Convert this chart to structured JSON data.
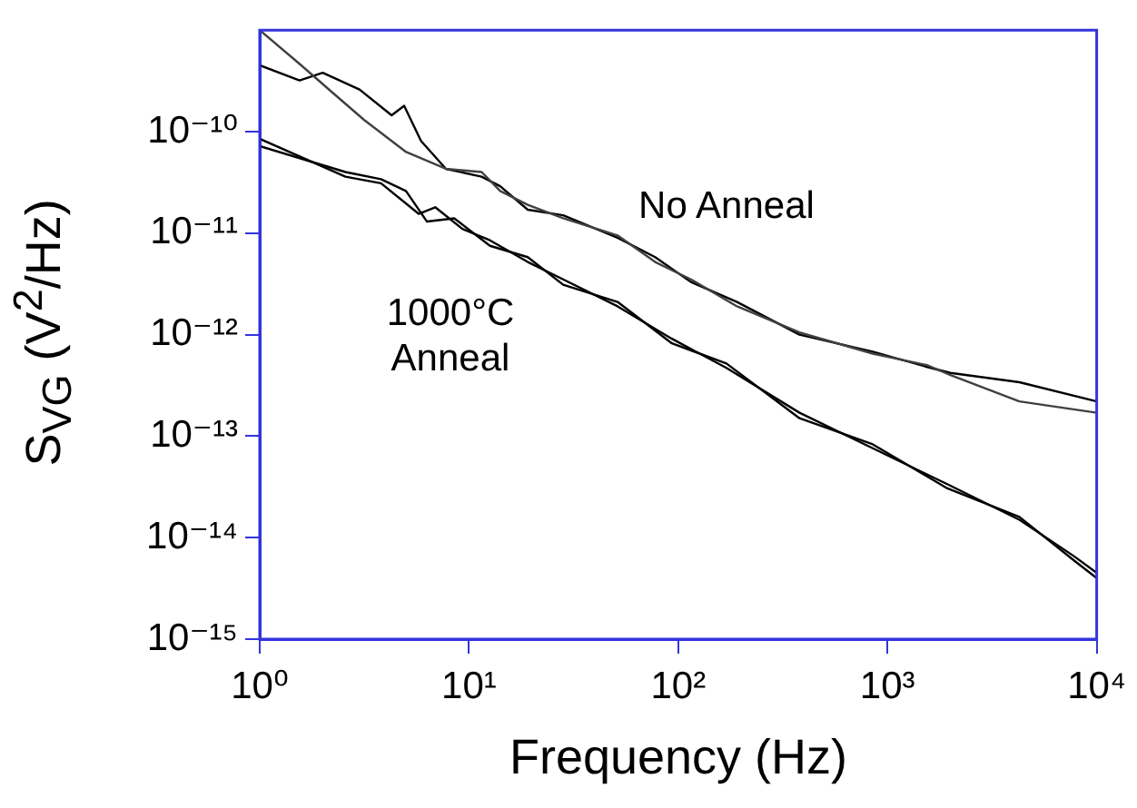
{
  "chart_data": {
    "type": "line",
    "xlabel": "Frequency (Hz)",
    "ylabel": "S$_{VG}$ (V$^{2}$/Hz)",
    "log": "xy",
    "grid": false,
    "legend": false,
    "marker": "none",
    "line_style": "solid",
    "xlim": [
      1,
      10000
    ],
    "ylim": [
      1e-15,
      1e-09
    ],
    "xticks": [
      {
        "value": 1,
        "label": "10⁰"
      },
      {
        "value": 10,
        "label": "10¹"
      },
      {
        "value": 100,
        "label": "10²"
      },
      {
        "value": 1000,
        "label": "10³"
      },
      {
        "value": 10000,
        "label": "10⁴"
      }
    ],
    "yticks": [
      {
        "value": 1e-15,
        "label": "10⁻¹⁵"
      },
      {
        "value": 1e-14,
        "label": "10⁻¹⁴"
      },
      {
        "value": 1e-13,
        "label": "10⁻¹³"
      },
      {
        "value": 1e-12,
        "label": "10⁻¹²"
      },
      {
        "value": 1e-11,
        "label": "10⁻¹¹"
      },
      {
        "value": 1e-10,
        "label": "10⁻¹⁰"
      }
    ],
    "annotations": [
      "No Anneal",
      "1000°C\nAnneal"
    ],
    "series": [
      {
        "color": "#404040",
        "x": [
          1,
          1.58,
          2.24,
          3.16,
          5.01,
          7.76,
          11.5,
          14.1,
          19.1,
          28.2,
          51.3,
          77.6,
          115,
          191,
          380,
          851,
          1550,
          2000,
          4270,
          10000
        ],
        "values": [
          1e-09,
          4.5e-10,
          2.4e-10,
          1.3e-10,
          6.3e-11,
          4.3e-11,
          4e-11,
          2.6e-11,
          1.9e-11,
          1.4e-11,
          9.5e-12,
          5.2e-12,
          3.5e-12,
          1.9e-12,
          1.05e-12,
          6.5e-13,
          5e-13,
          4e-13,
          2.2e-13,
          1.7e-13
        ]
      },
      {
        "color": "#000000",
        "x": [
          1,
          1.55,
          2.0,
          3.0,
          4.27,
          4.9,
          5.9,
          7.76,
          11.5,
          14.1,
          19.1,
          28.2,
          51.3,
          77.6,
          115,
          191,
          380,
          851,
          1550,
          2000,
          4270,
          10000
        ],
        "values": [
          4.5e-10,
          3.2e-10,
          3.8e-10,
          2.6e-10,
          1.45e-10,
          1.8e-10,
          8.1e-11,
          4.3e-11,
          3.6e-11,
          2.9e-11,
          1.7e-11,
          1.5e-11,
          9e-12,
          5.8e-12,
          3.3e-12,
          2.1e-12,
          1e-12,
          6.8e-13,
          4.8e-13,
          4.2e-13,
          3.4e-13,
          2.2e-13
        ]
      },
      {
        "color": "#000000",
        "x": [
          1,
          2.57,
          3.8,
          5.75,
          6.9,
          9.3,
          12.6,
          19.1,
          28.2,
          51.3,
          93.3,
          170,
          380,
          851,
          1910,
          4270,
          7760,
          10000
        ],
        "values": [
          8.5e-11,
          3.6e-11,
          3.1e-11,
          1.55e-11,
          1.8e-11,
          1.1e-11,
          8.5e-12,
          5.2e-12,
          3.5e-12,
          1.9e-12,
          9.1e-13,
          4.7e-13,
          1.7e-13,
          7.6e-14,
          3.4e-14,
          1.5e-14,
          6.6e-15,
          4.5e-15
        ]
      },
      {
        "color": "#000000",
        "x": [
          1,
          2.57,
          3.8,
          5.0,
          6.3,
          8.5,
          12.6,
          19.1,
          28.2,
          51.3,
          93.3,
          170,
          380,
          851,
          1910,
          4270,
          7760,
          10000
        ],
        "values": [
          7.2e-11,
          4e-11,
          3.4e-11,
          2.6e-11,
          1.3e-11,
          1.4e-11,
          7.5e-12,
          5.8e-12,
          3.1e-12,
          2.1e-12,
          8.2e-13,
          5.2e-13,
          1.5e-13,
          8.3e-14,
          3.1e-14,
          1.6e-14,
          6e-15,
          4e-15
        ]
      }
    ]
  }
}
